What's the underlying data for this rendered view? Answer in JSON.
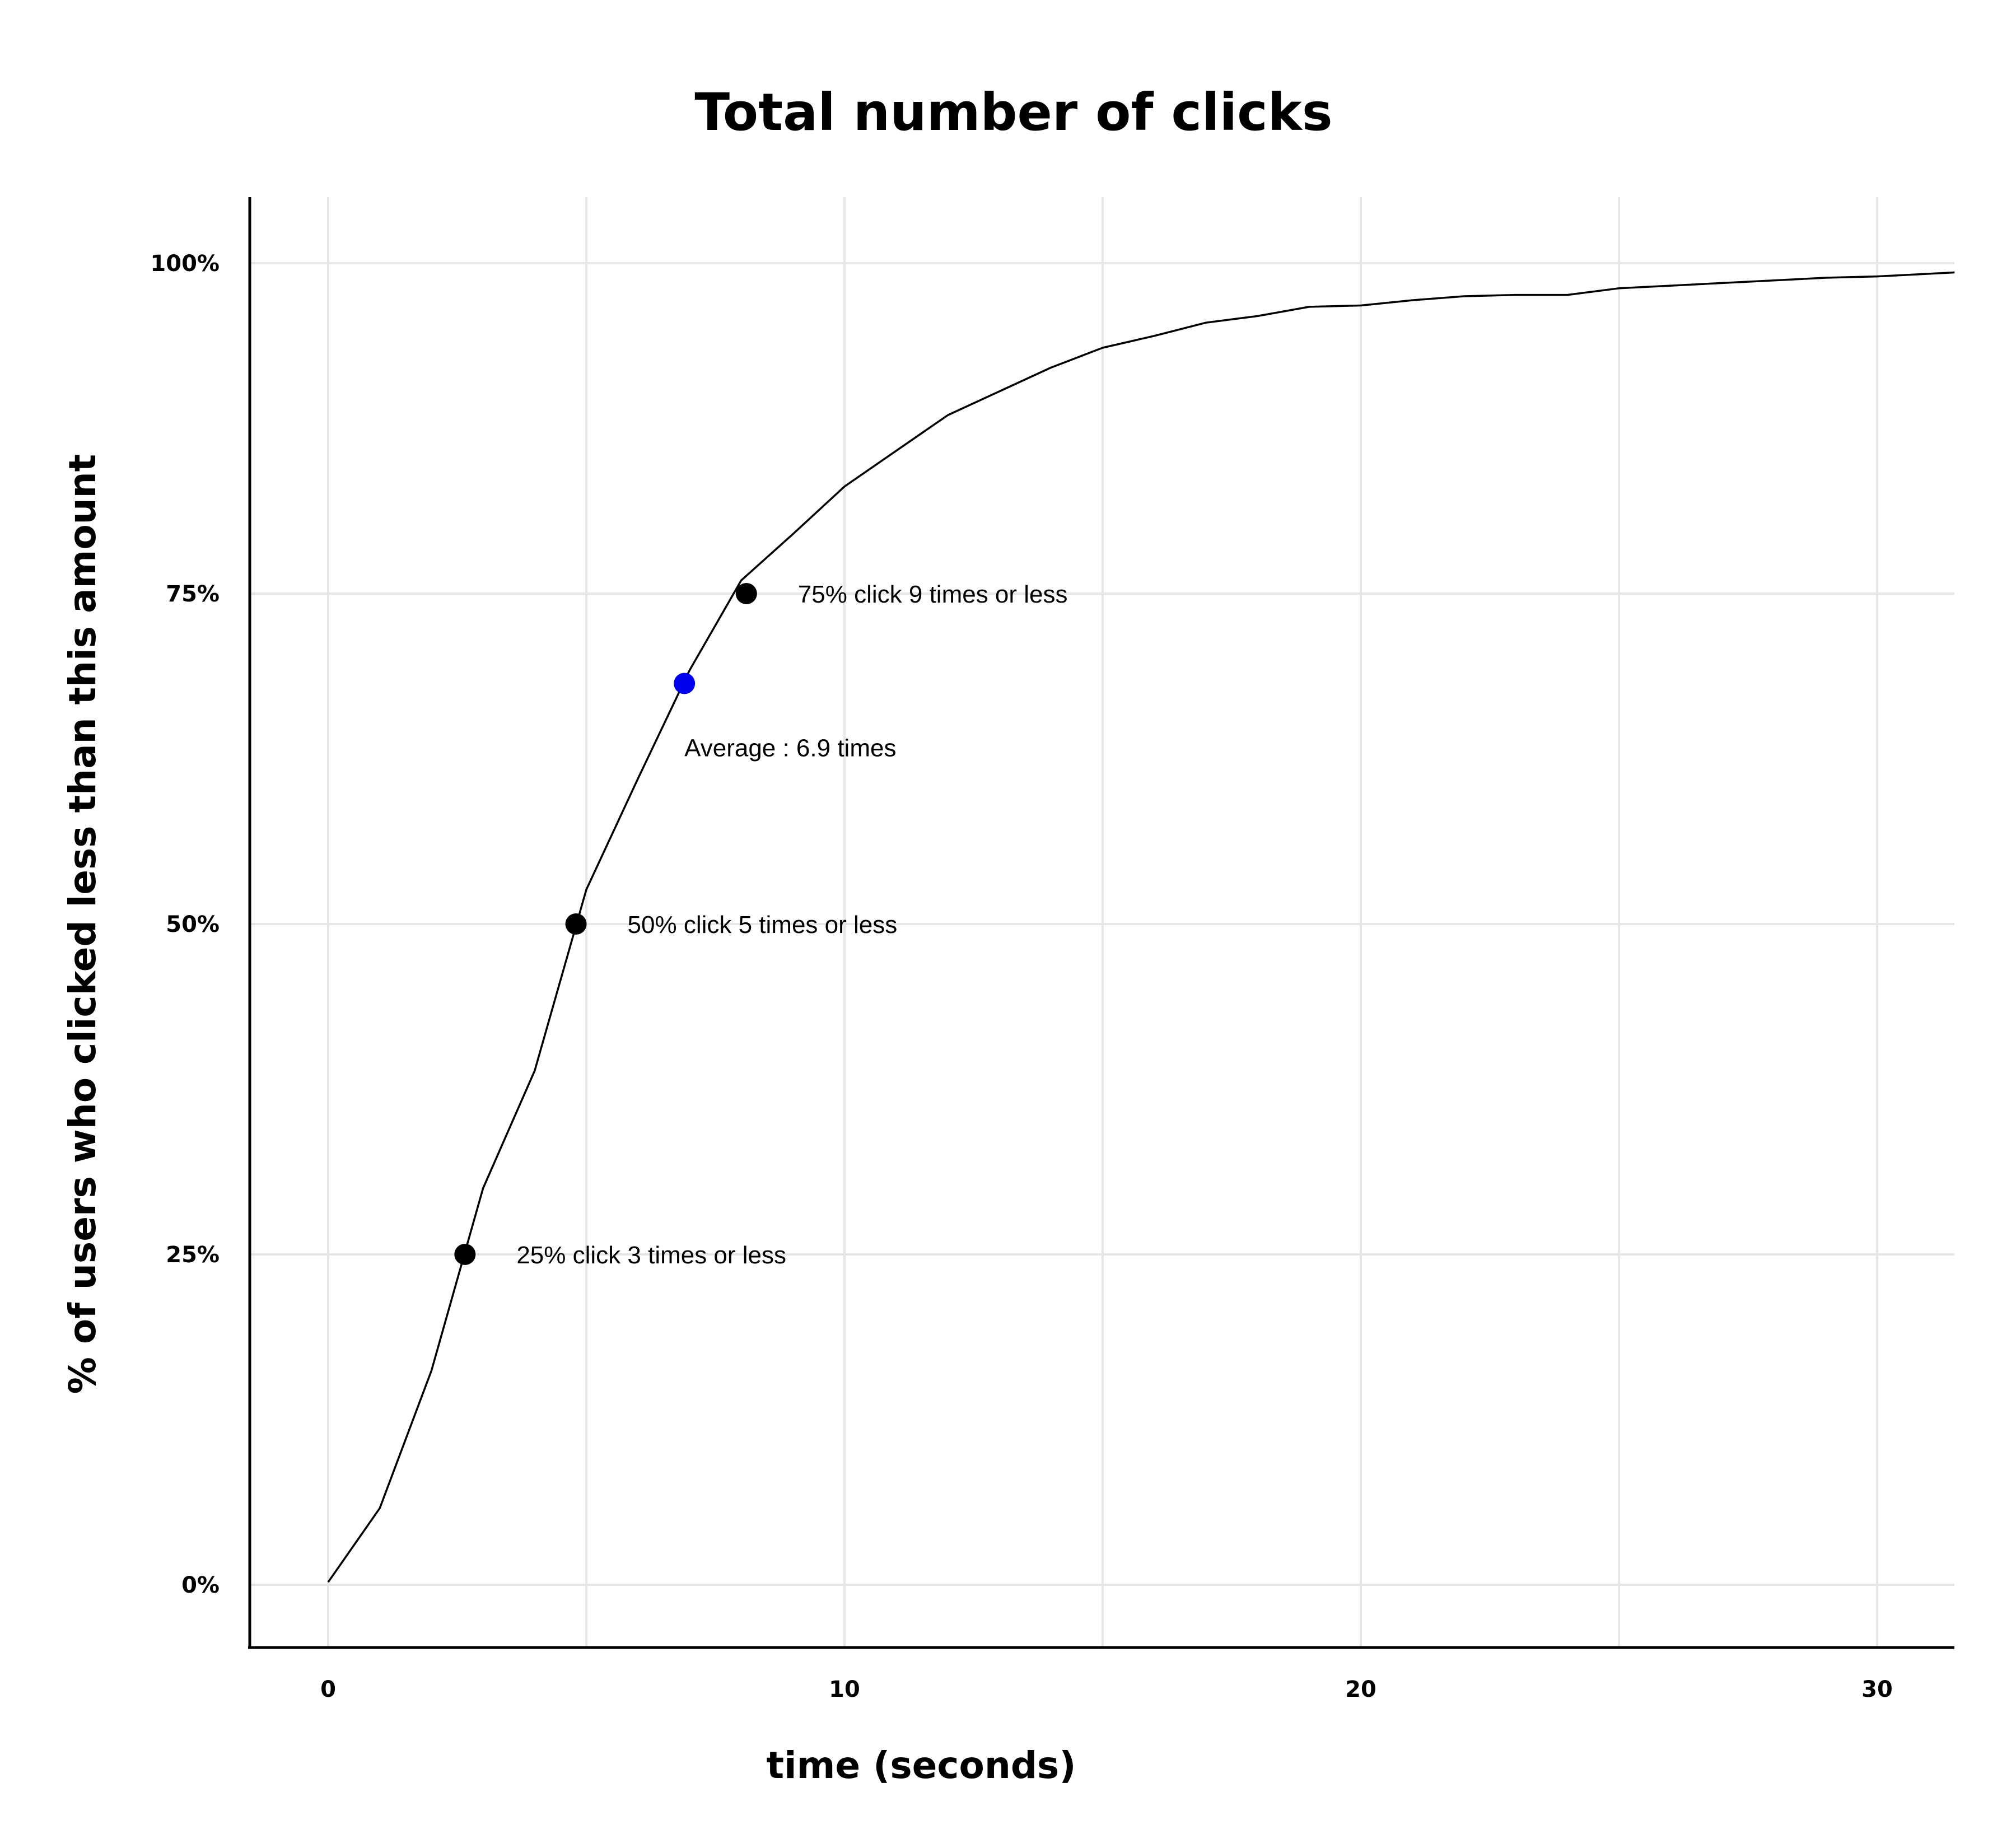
{
  "chart_data": {
    "type": "line",
    "title": "Total number of clicks",
    "xlabel": "time (seconds)",
    "ylabel": "% of users who clicked less than this amount",
    "xlim": [
      -1.5,
      31.5
    ],
    "ylim": [
      -4.5,
      105
    ],
    "xticks": [
      0,
      10,
      20,
      30
    ],
    "xtick_labels": [
      "0",
      "10",
      "20",
      "30"
    ],
    "xgrid": [
      0,
      5,
      10,
      15,
      20,
      25,
      30
    ],
    "yticks": [
      0,
      25,
      50,
      75,
      100
    ],
    "ytick_labels": [
      "0%",
      "25%",
      "50%",
      "75%",
      "100%"
    ],
    "grid": true,
    "line_color": "#000000",
    "series": [
      {
        "x": [
          0,
          1,
          2,
          3,
          4,
          5,
          6,
          7,
          8,
          9,
          10,
          11,
          12,
          13,
          14,
          15,
          16,
          17,
          18,
          19,
          20,
          21,
          22,
          23,
          24,
          25,
          26,
          27,
          28,
          29,
          30,
          31,
          31.5
        ],
        "values": [
          0.2,
          5.8,
          16.2,
          30.0,
          38.9,
          52.6,
          61.0,
          69.2,
          76.0,
          79.5,
          83.1,
          85.8,
          88.5,
          90.3,
          92.1,
          93.6,
          94.5,
          95.5,
          96.0,
          96.7,
          96.8,
          97.2,
          97.5,
          97.6,
          97.6,
          98.1,
          98.3,
          98.5,
          98.7,
          98.9,
          99.0,
          99.2,
          99.3
        ]
      }
    ],
    "markers": [
      {
        "x": 2.65,
        "y": 25,
        "color": "#000000",
        "label": "25% click 3 times or less"
      },
      {
        "x": 4.8,
        "y": 50,
        "color": "#000000",
        "label": "50% click 5 times or less"
      },
      {
        "x": 8.1,
        "y": 75,
        "color": "#000000",
        "label": "75% click 9 times or less"
      },
      {
        "x": 6.9,
        "y": 68.2,
        "color": "#0000ee",
        "label": "Average : 6.9 times"
      }
    ]
  }
}
